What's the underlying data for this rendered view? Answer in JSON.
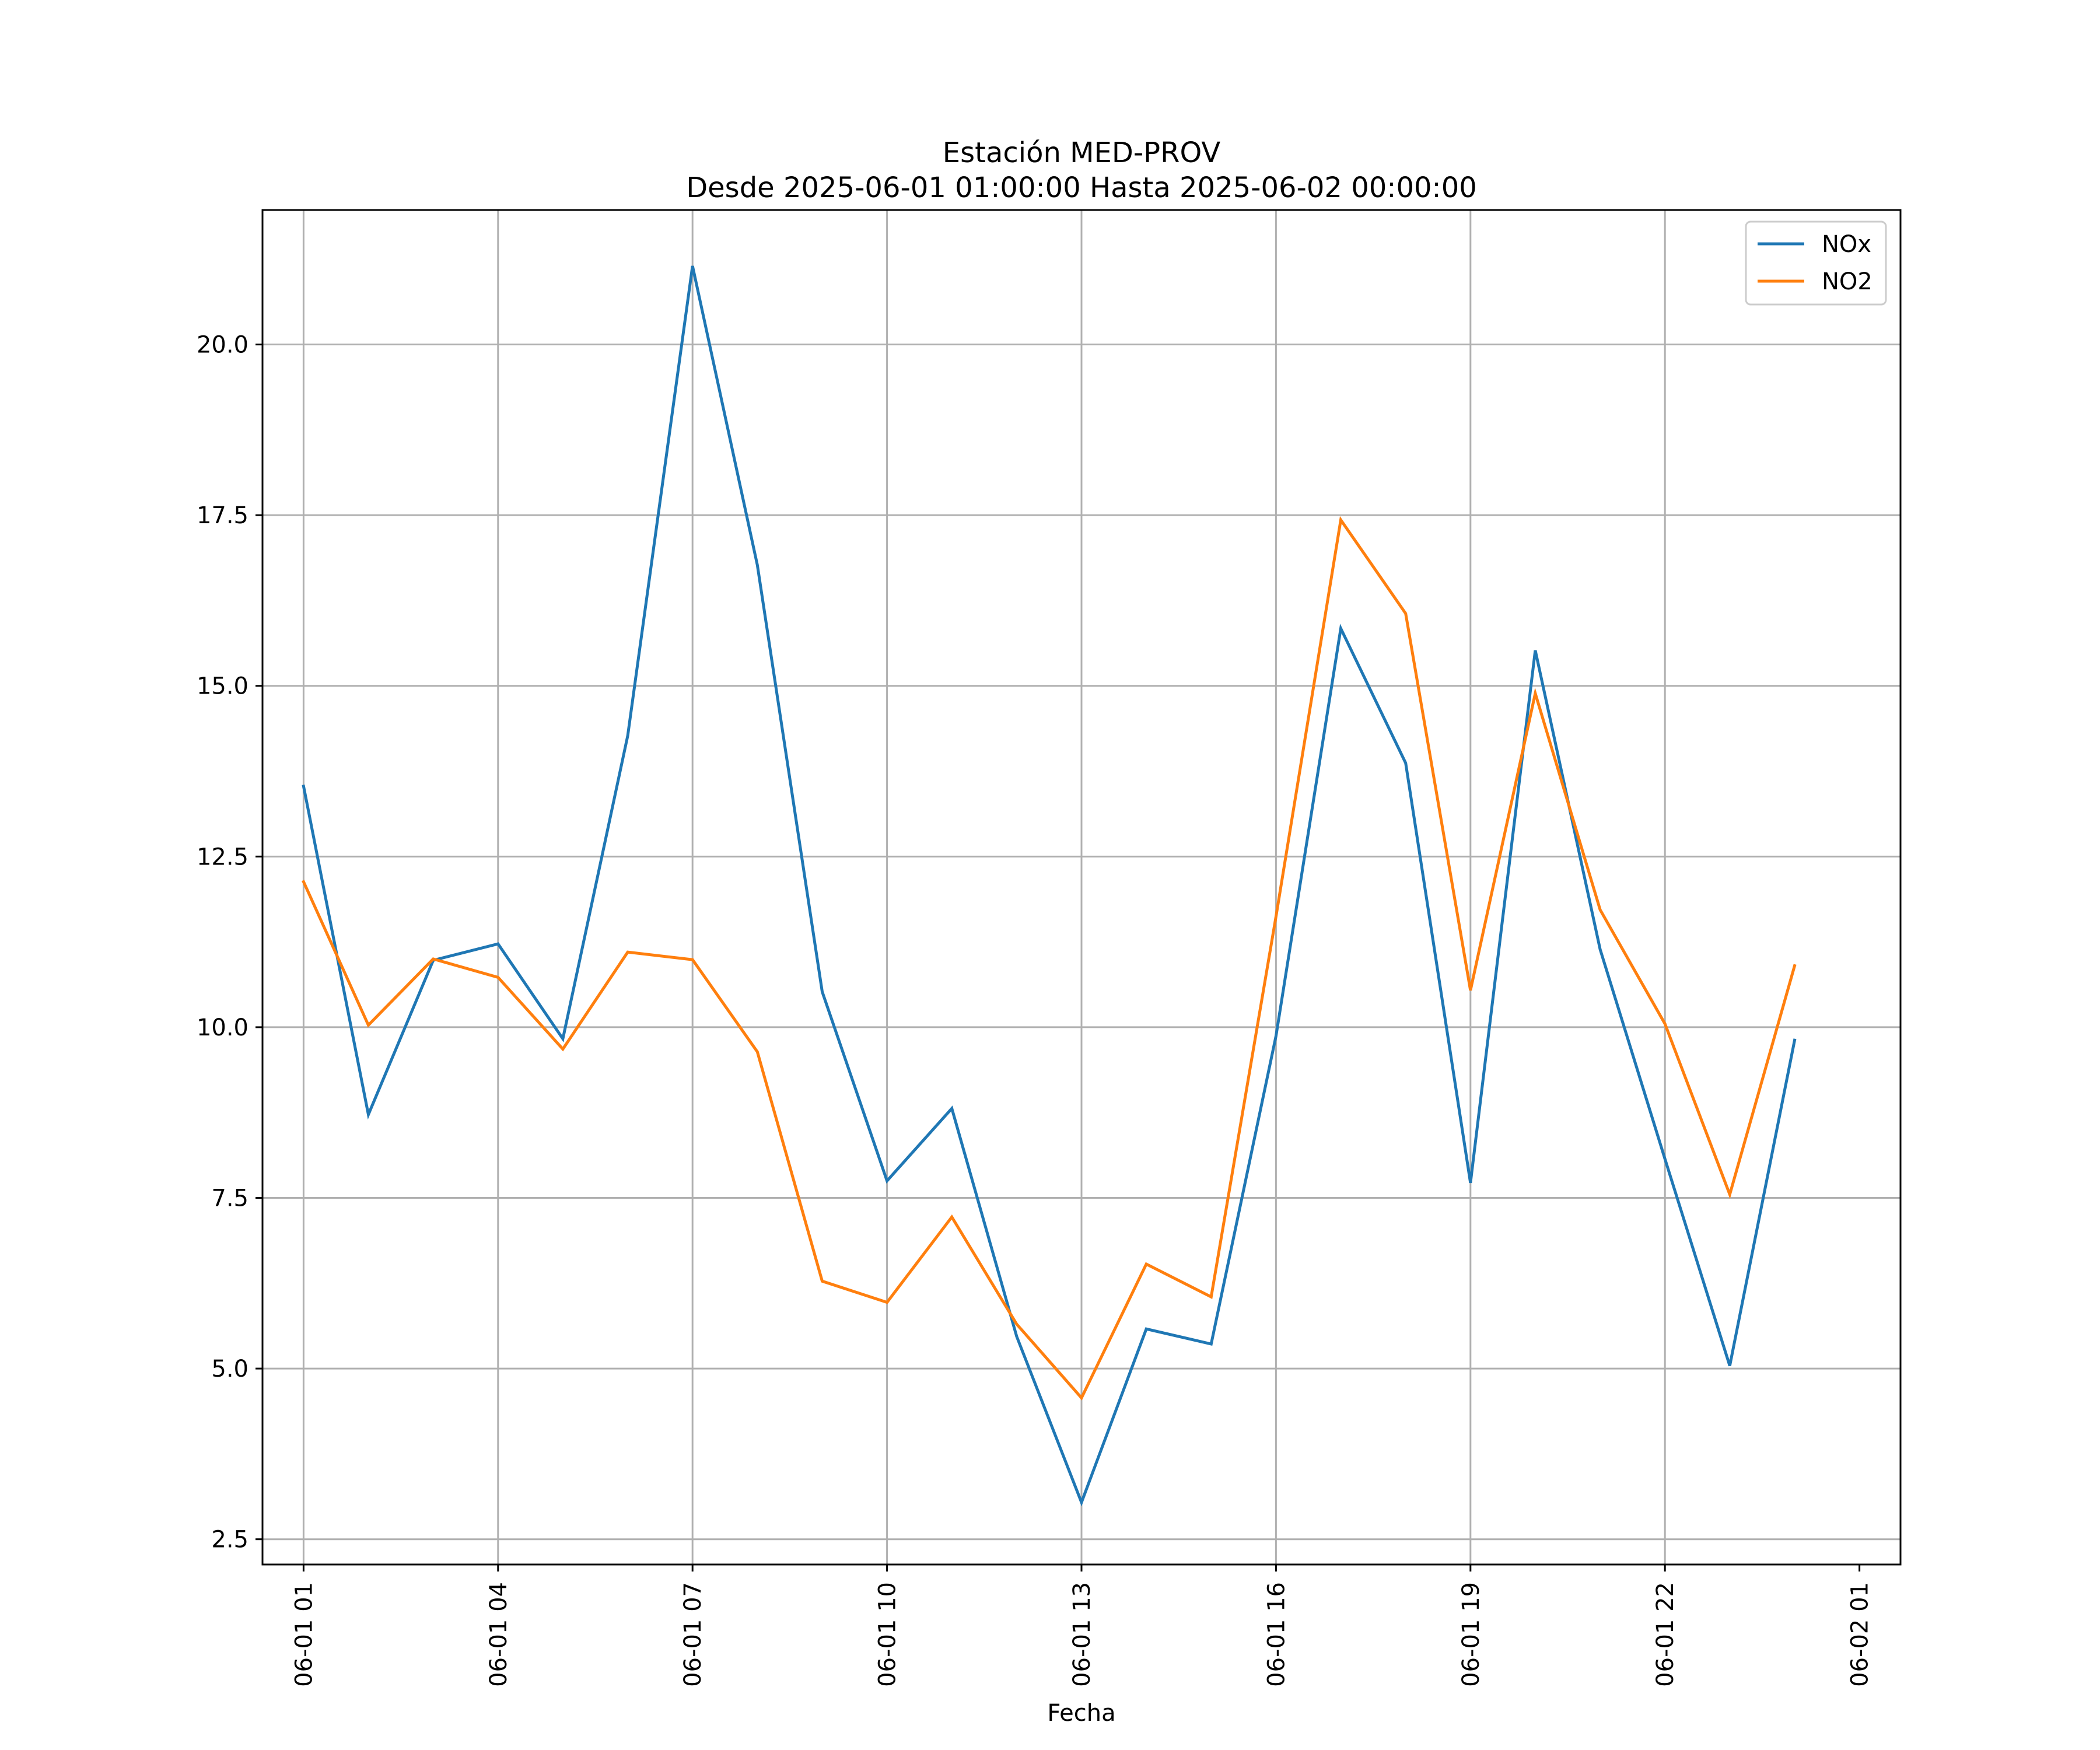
{
  "chart_data": {
    "type": "line",
    "title": "Estación MED-PROV",
    "subtitle": "Desde 2025-06-01 01:00:00 Hasta 2025-06-02 00:00:00",
    "xlabel": "Fecha",
    "ylabel": "",
    "x": [
      "2025-06-01 01:00",
      "2025-06-01 02:00",
      "2025-06-01 03:00",
      "2025-06-01 04:00",
      "2025-06-01 05:00",
      "2025-06-01 06:00",
      "2025-06-01 07:00",
      "2025-06-01 08:00",
      "2025-06-01 09:00",
      "2025-06-01 10:00",
      "2025-06-01 11:00",
      "2025-06-01 12:00",
      "2025-06-01 13:00",
      "2025-06-01 14:00",
      "2025-06-01 15:00",
      "2025-06-01 16:00",
      "2025-06-01 17:00",
      "2025-06-01 18:00",
      "2025-06-01 19:00",
      "2025-06-01 20:00",
      "2025-06-01 21:00",
      "2025-06-01 22:00",
      "2025-06-01 23:00",
      "2025-06-02 00:00"
    ],
    "series": [
      {
        "name": "NOx",
        "color": "#1f77b4",
        "values": [
          13.53,
          8.72,
          10.98,
          11.22,
          9.83,
          14.27,
          21.15,
          16.77,
          10.52,
          7.75,
          8.81,
          5.47,
          3.04,
          5.58,
          5.36,
          9.87,
          15.84,
          13.87,
          7.72,
          15.52,
          11.14,
          8.07,
          5.04,
          9.81
        ]
      },
      {
        "name": "NO2",
        "color": "#ff7f0e",
        "values": [
          12.13,
          10.03,
          11.0,
          10.73,
          9.68,
          11.1,
          10.99,
          9.64,
          6.28,
          5.97,
          7.22,
          5.65,
          4.57,
          6.53,
          6.05,
          11.62,
          17.43,
          16.06,
          10.54,
          14.89,
          11.72,
          10.05,
          7.55,
          10.9
        ]
      }
    ],
    "ylim": [
      2.13,
      21.97
    ],
    "xlim": [
      "2025-06-01 00:22:00",
      "2025-06-02 01:38:00"
    ],
    "x_ticks": [
      "06-01 01",
      "06-01 04",
      "06-01 07",
      "06-01 10",
      "06-01 13",
      "06-01 16",
      "06-01 19",
      "06-01 22",
      "06-02 01"
    ],
    "y_ticks": [
      "2.5",
      "5.0",
      "7.5",
      "10.0",
      "12.5",
      "15.0",
      "17.5",
      "20.0"
    ],
    "y_tick_values": [
      2.5,
      5.0,
      7.5,
      10.0,
      12.5,
      15.0,
      17.5,
      20.0
    ],
    "x_tick_hours": [
      1,
      4,
      7,
      10,
      13,
      16,
      19,
      22,
      25
    ],
    "grid": true,
    "legend_position": "top-right"
  }
}
